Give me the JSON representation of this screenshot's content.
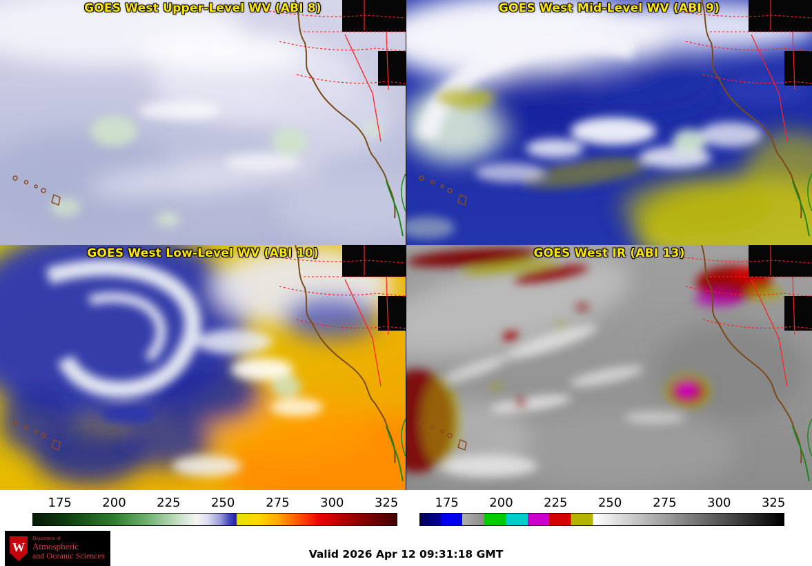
{
  "panels": [
    {
      "title": "GOES West Upper-Level WV (ABI 8)"
    },
    {
      "title": "GOES West Mid-Level WV (ABI 9)"
    },
    {
      "title": "GOES West Low-Level WV (ABI 10)"
    },
    {
      "title": "GOES West IR (ABI 13)"
    }
  ],
  "colorbars": {
    "wv": {
      "ticks": [
        "175",
        "200",
        "225",
        "250",
        "275",
        "300",
        "325"
      ],
      "tick_positions_pct": [
        7.5,
        22.4,
        37.3,
        52.2,
        67.2,
        82.1,
        97.0
      ],
      "stops": [
        {
          "p": 0,
          "c": "#061c06"
        },
        {
          "p": 7.5,
          "c": "#0d350d"
        },
        {
          "p": 15,
          "c": "#1d5a1d"
        },
        {
          "p": 22.4,
          "c": "#2f7d2f"
        },
        {
          "p": 31,
          "c": "#6cae6c"
        },
        {
          "p": 40,
          "c": "#c6dfc6"
        },
        {
          "p": 45,
          "c": "#f5f5f5"
        },
        {
          "p": 48,
          "c": "#dcdcf0"
        },
        {
          "p": 51.5,
          "c": "#9a9ada"
        },
        {
          "p": 54,
          "c": "#4646be"
        },
        {
          "p": 55.8,
          "c": "#2222a4"
        },
        {
          "p": 56.2,
          "c": "#e2e200"
        },
        {
          "p": 62,
          "c": "#ffd800"
        },
        {
          "p": 67.2,
          "c": "#ffaa00"
        },
        {
          "p": 74,
          "c": "#ff4400"
        },
        {
          "p": 79,
          "c": "#ea0000"
        },
        {
          "p": 88,
          "c": "#9a0000"
        },
        {
          "p": 100,
          "c": "#400000"
        }
      ]
    },
    "ir": {
      "ticks": [
        "175",
        "200",
        "225",
        "250",
        "275",
        "300",
        "325"
      ],
      "tick_positions_pct": [
        7.5,
        22.4,
        37.3,
        52.2,
        67.2,
        82.1,
        97.0
      ],
      "stops": [
        {
          "p": 0,
          "c": "#000055"
        },
        {
          "p": 5.7,
          "c": "#000099"
        },
        {
          "p": 5.7,
          "c": "#0000ee"
        },
        {
          "p": 11.6,
          "c": "#0000ee"
        },
        {
          "p": 11.6,
          "c": "#b0b0b0"
        },
        {
          "p": 17.6,
          "c": "#8a8a8a"
        },
        {
          "p": 17.6,
          "c": "#00cc00"
        },
        {
          "p": 23.6,
          "c": "#00cc00"
        },
        {
          "p": 23.6,
          "c": "#00cccc"
        },
        {
          "p": 29.6,
          "c": "#00cccc"
        },
        {
          "p": 29.6,
          "c": "#cc00cc"
        },
        {
          "p": 35.5,
          "c": "#cc00cc"
        },
        {
          "p": 35.5,
          "c": "#d40000"
        },
        {
          "p": 41.5,
          "c": "#d40000"
        },
        {
          "p": 41.5,
          "c": "#b4b400"
        },
        {
          "p": 47.5,
          "c": "#b4b400"
        },
        {
          "p": 47.5,
          "c": "#ffffff"
        },
        {
          "p": 100,
          "c": "#000000"
        }
      ]
    }
  },
  "footer": {
    "valid_time": "Valid 2026 Apr 12 09:31:18 GMT",
    "logo": {
      "line_small": "Department of",
      "line1": "Atmospheric",
      "line2": "and Oceanic Sciences",
      "crest_letter": "W"
    }
  },
  "colors": {
    "title_text": "#ffe600",
    "graticule_red": "#ff2222",
    "coastline_brown": "#7a4a18",
    "coastline_green": "#1a8a1a",
    "logo_red": "#d84040"
  }
}
